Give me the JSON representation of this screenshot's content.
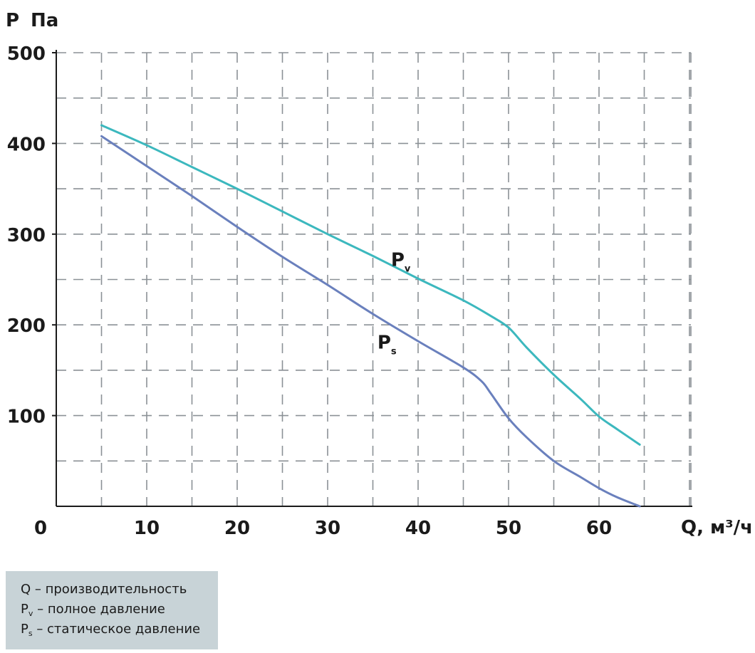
{
  "chart_data": {
    "type": "line",
    "y_axis_title": "P",
    "y_axis_unit": "Па",
    "x_axis_title": "Q, м³/ч",
    "xlim": [
      0,
      70
    ],
    "ylim": [
      0,
      500
    ],
    "x_ticks": [
      10,
      20,
      30,
      40,
      50,
      60
    ],
    "y_ticks": [
      100,
      200,
      300,
      400,
      500
    ],
    "origin_label": "0",
    "grid": true,
    "grid_style": "dashed",
    "series": [
      {
        "name": "Pv",
        "label_main": "P",
        "label_sub": "v",
        "color": "#3cb8be",
        "label_at": [
          37,
          265
        ],
        "points": [
          [
            5,
            420
          ],
          [
            10,
            398
          ],
          [
            15,
            374
          ],
          [
            20,
            350
          ],
          [
            25,
            325
          ],
          [
            30,
            300
          ],
          [
            35,
            276
          ],
          [
            40,
            251
          ],
          [
            45,
            227
          ],
          [
            48,
            210
          ],
          [
            50,
            197
          ],
          [
            52,
            175
          ],
          [
            55,
            145
          ],
          [
            58,
            118
          ],
          [
            60,
            99
          ],
          [
            62,
            85
          ],
          [
            64.5,
            68
          ]
        ]
      },
      {
        "name": "Ps",
        "label_main": "P",
        "label_sub": "s",
        "color": "#6a80bd",
        "label_at": [
          35.5,
          174
        ],
        "points": [
          [
            5,
            408
          ],
          [
            10,
            375
          ],
          [
            15,
            342
          ],
          [
            20,
            308
          ],
          [
            25,
            275
          ],
          [
            30,
            244
          ],
          [
            35,
            212
          ],
          [
            40,
            182
          ],
          [
            45,
            153
          ],
          [
            47,
            138
          ],
          [
            48,
            125
          ],
          [
            50,
            97
          ],
          [
            52,
            76
          ],
          [
            55,
            50
          ],
          [
            58,
            32
          ],
          [
            60,
            20
          ],
          [
            62,
            10
          ],
          [
            64.5,
            0
          ]
        ]
      }
    ]
  },
  "legend": {
    "rows": [
      {
        "symbol": "Q",
        "sub": "",
        "text": " – производительность"
      },
      {
        "symbol": "P",
        "sub": "v",
        "text": " – полное давление"
      },
      {
        "symbol": "P",
        "sub": "s",
        "text": " – статическое давление"
      }
    ]
  }
}
